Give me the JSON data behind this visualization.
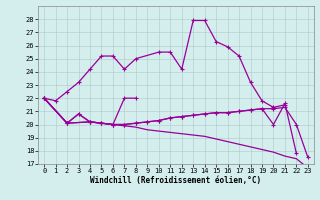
{
  "xlabel": "Windchill (Refroidissement éolien,°C)",
  "line_color": "#990099",
  "bg_color": "#d4eeed",
  "grid_color": "#b0c8c8",
  "ylim": [
    17,
    29
  ],
  "yticks": [
    17,
    18,
    19,
    20,
    21,
    22,
    23,
    24,
    25,
    26,
    27,
    28
  ],
  "xlim": [
    -0.5,
    23.5
  ],
  "xticks": [
    0,
    1,
    2,
    3,
    4,
    5,
    6,
    7,
    8,
    9,
    10,
    11,
    12,
    13,
    14,
    15,
    16,
    17,
    18,
    19,
    20,
    21,
    22,
    23
  ],
  "series_main": {
    "x": [
      0,
      1,
      2,
      3,
      4,
      5,
      6,
      7,
      8,
      10,
      11,
      12,
      13,
      14,
      15,
      16,
      17,
      18,
      19,
      20,
      21
    ],
    "y": [
      22,
      21.8,
      22.5,
      23.2,
      24.2,
      25.2,
      25.2,
      24.2,
      25.0,
      25.5,
      25.5,
      24.2,
      27.9,
      27.9,
      26.3,
      25.9,
      25.2,
      23.2,
      21.8,
      21.3,
      21.5
    ]
  },
  "series_bump": {
    "x": [
      0,
      2,
      3,
      4,
      5,
      6,
      7,
      8
    ],
    "y": [
      22,
      20.1,
      20.8,
      20.2,
      20.1,
      20.0,
      22.0,
      22.0
    ]
  },
  "series_flat1": {
    "x": [
      0,
      2,
      3,
      4,
      5,
      6,
      7,
      8,
      9,
      10,
      11,
      12,
      13,
      14,
      15,
      16,
      17,
      18,
      19,
      20,
      21,
      22,
      23
    ],
    "y": [
      22,
      20.1,
      20.8,
      20.2,
      20.1,
      20.0,
      20.0,
      20.1,
      20.2,
      20.3,
      20.5,
      20.6,
      20.7,
      20.8,
      20.9,
      20.9,
      21.0,
      21.1,
      21.2,
      21.2,
      21.3,
      20.0,
      17.5
    ]
  },
  "series_flat2": {
    "x": [
      0,
      2,
      4,
      5,
      6,
      7,
      8,
      9,
      10,
      11,
      12,
      13,
      14,
      15,
      16,
      17,
      18,
      19,
      20,
      21,
      22
    ],
    "y": [
      22,
      20.1,
      20.2,
      20.1,
      20.0,
      20.0,
      20.1,
      20.2,
      20.3,
      20.5,
      20.6,
      20.7,
      20.8,
      20.9,
      20.9,
      21.0,
      21.1,
      21.2,
      20.0,
      21.6,
      17.8
    ]
  },
  "series_diag": {
    "x": [
      0,
      2,
      4,
      5,
      6,
      7,
      8,
      9,
      10,
      11,
      12,
      13,
      14,
      15,
      16,
      17,
      18,
      19,
      20,
      21,
      22,
      23
    ],
    "y": [
      22,
      20.1,
      20.2,
      20.1,
      20.0,
      19.9,
      19.8,
      19.6,
      19.5,
      19.4,
      19.3,
      19.2,
      19.1,
      18.9,
      18.7,
      18.5,
      18.3,
      18.1,
      17.9,
      17.6,
      17.4,
      16.7
    ]
  }
}
